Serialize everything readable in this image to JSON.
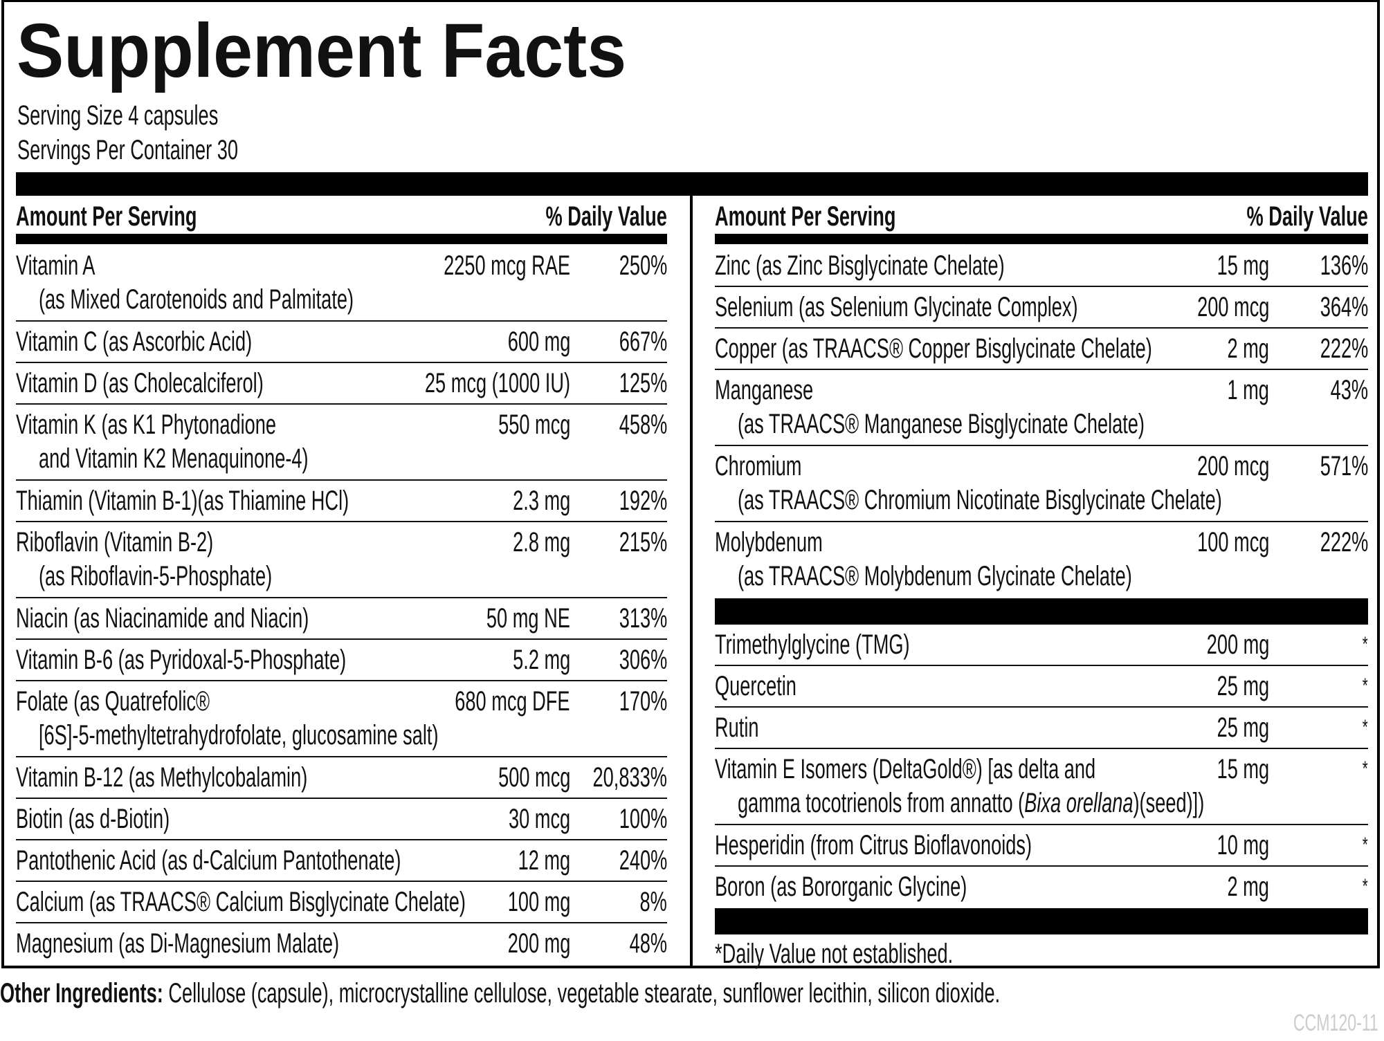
{
  "title": "Supplement Facts",
  "serving_size": "Serving Size 4 capsules",
  "servings_per_container": "Servings Per Container 30",
  "columns": [
    {
      "header_amount": "Amount Per Serving",
      "header_dv": "% Daily Value",
      "groups": [
        [
          {
            "name": "Vitamin A",
            "detail": "(as Mixed Carotenoids and Palmitate)",
            "amount": "2250 mcg RAE",
            "dv": "250%"
          },
          {
            "name": "Vitamin C (as Ascorbic Acid)",
            "amount": "600 mg",
            "dv": "667%"
          },
          {
            "name": "Vitamin D (as Cholecalciferol)",
            "amount": "25 mcg (1000 IU)",
            "dv": "125%"
          },
          {
            "name": "Vitamin K (as K1 Phytonadione",
            "detail": "and Vitamin K2 Menaquinone-4)",
            "amount": "550 mcg",
            "dv": "458%"
          },
          {
            "name": "Thiamin (Vitamin B-1)(as Thiamine HCl)",
            "amount": "2.3 mg",
            "dv": "192%"
          },
          {
            "name": "Riboflavin (Vitamin B-2)",
            "detail": "(as Riboflavin-5-Phosphate)",
            "amount": "2.8 mg",
            "dv": "215%"
          },
          {
            "name": "Niacin (as Niacinamide and Niacin)",
            "amount": "50 mg NE",
            "dv": "313%"
          },
          {
            "name": "Vitamin B-6 (as Pyridoxal-5-Phosphate)",
            "amount": "5.2 mg",
            "dv": "306%"
          },
          {
            "name": "Folate (as Quatrefolic®",
            "detail": "[6S]-5-methyltetrahydrofolate, glucosamine salt)",
            "amount": "680 mcg DFE",
            "dv": "170%"
          },
          {
            "name": "Vitamin B-12 (as Methylcobalamin)",
            "amount": "500 mcg",
            "dv": "20,833%"
          },
          {
            "name": "Biotin (as d-Biotin)",
            "amount": "30 mcg",
            "dv": "100%"
          },
          {
            "name": "Pantothenic Acid (as d-Calcium Pantothenate)",
            "amount": "12 mg",
            "dv": "240%"
          },
          {
            "name": "Calcium (as TRAACS® Calcium Bisglycinate Chelate)",
            "amount": "100 mg",
            "dv": "8%"
          },
          {
            "name": "Magnesium (as Di-Magnesium Malate)",
            "amount": "200 mg",
            "dv": "48%"
          }
        ]
      ]
    },
    {
      "header_amount": "Amount Per Serving",
      "header_dv": "% Daily Value",
      "groups": [
        [
          {
            "name": "Zinc (as Zinc Bisglycinate Chelate)",
            "amount": "15 mg",
            "dv": "136%"
          },
          {
            "name": "Selenium (as Selenium Glycinate Complex)",
            "amount": "200 mcg",
            "dv": "364%"
          },
          {
            "name": "Copper (as TRAACS® Copper Bisglycinate Chelate)",
            "amount": "2 mg",
            "dv": "222%"
          },
          {
            "name": "Manganese",
            "detail": "(as TRAACS® Manganese Bisglycinate Chelate)",
            "amount": "1 mg",
            "dv": "43%"
          },
          {
            "name": "Chromium",
            "detail": "(as TRAACS® Chromium Nicotinate Bisglycinate Chelate)",
            "amount": "200 mcg",
            "dv": "571%"
          },
          {
            "name": "Molybdenum",
            "detail": "(as TRAACS® Molybdenum Glycinate Chelate)",
            "amount": "100 mcg",
            "dv": "222%"
          }
        ],
        [
          {
            "name": "Trimethylglycine (TMG)",
            "amount": "200 mg",
            "dv": "*"
          },
          {
            "name": "Quercetin",
            "amount": "25 mg",
            "dv": "*"
          },
          {
            "name": "Rutin",
            "amount": "25 mg",
            "dv": "*"
          },
          {
            "name": "Vitamin E Isomers (DeltaGold®) [as delta and",
            "detail": [
              {
                "text": "gamma tocotrienols from annatto ("
              },
              {
                "text": "Bixa orellana",
                "italic": true
              },
              {
                "text": ")(seed)])"
              }
            ],
            "amount": "15 mg",
            "dv": "*"
          },
          {
            "name": "Hesperidin (from Citrus Bioflavonoids)",
            "amount": "10 mg",
            "dv": "*"
          },
          {
            "name": "Boron (as Bororganic Glycine)",
            "amount": "2 mg",
            "dv": "*"
          }
        ]
      ],
      "footnote": "*Daily Value not established."
    }
  ],
  "other_ingredients": {
    "label": "Other Ingredients:",
    "text": "Cellulose (capsule), microcrystalline cellulose, vegetable stearate, sunflower lecithin, silicon dioxide."
  },
  "code": "CCM120-11"
}
